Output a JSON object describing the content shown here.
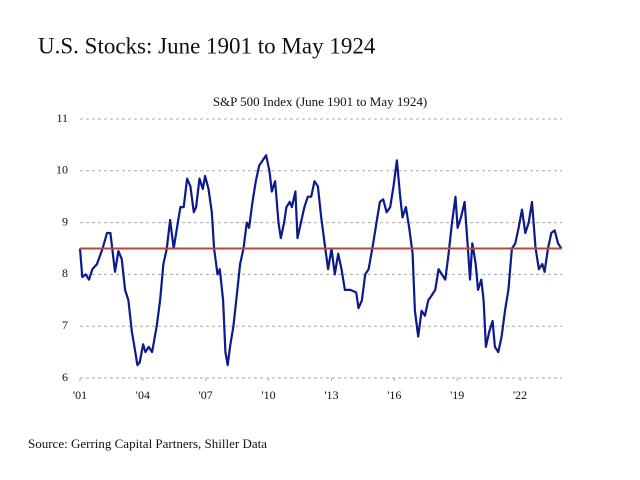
{
  "chart_data": {
    "type": "line",
    "title": "U.S. Stocks:  June 1901 to May 1924",
    "subtitle": "S&P 500 Index (June 1901 to May 1924)",
    "source": "Source: Gerring Capital Partners, Shiller Data",
    "x": [
      1901.0,
      1901.11,
      1901.27,
      1901.43,
      1901.59,
      1901.81,
      1902.08,
      1902.29,
      1902.45,
      1902.67,
      1902.83,
      1902.99,
      1903.15,
      1903.31,
      1903.47,
      1903.64,
      1903.74,
      1903.85,
      1904.01,
      1904.12,
      1904.28,
      1904.44,
      1904.66,
      1904.82,
      1904.98,
      1905.14,
      1905.3,
      1905.47,
      1905.63,
      1905.79,
      1905.95,
      1906.11,
      1906.27,
      1906.43,
      1906.54,
      1906.7,
      1906.86,
      1906.97,
      1907.13,
      1907.29,
      1907.4,
      1907.56,
      1907.67,
      1907.83,
      1907.94,
      1908.05,
      1908.16,
      1908.32,
      1908.48,
      1908.64,
      1908.8,
      1908.96,
      1909.07,
      1909.23,
      1909.39,
      1909.55,
      1909.72,
      1909.88,
      1910.04,
      1910.15,
      1910.31,
      1910.47,
      1910.58,
      1910.74,
      1910.85,
      1911.01,
      1911.11,
      1911.28,
      1911.38,
      1911.54,
      1911.71,
      1911.87,
      1912.03,
      1912.19,
      1912.35,
      1912.51,
      1912.67,
      1912.84,
      1913.0,
      1913.16,
      1913.32,
      1913.48,
      1913.64,
      1913.91,
      1914.18,
      1914.29,
      1914.45,
      1914.61,
      1914.77,
      1914.99,
      1915.15,
      1915.31,
      1915.47,
      1915.63,
      1915.8,
      1915.96,
      1916.12,
      1916.28,
      1916.39,
      1916.55,
      1916.71,
      1916.87,
      1916.98,
      1917.14,
      1917.3,
      1917.46,
      1917.62,
      1917.79,
      1917.95,
      1918.11,
      1918.27,
      1918.43,
      1918.59,
      1918.75,
      1918.92,
      1919.02,
      1919.18,
      1919.35,
      1919.51,
      1919.61,
      1919.72,
      1919.88,
      1919.99,
      1920.15,
      1920.26,
      1920.37,
      1920.53,
      1920.69,
      1920.8,
      1920.96,
      1921.12,
      1921.28,
      1921.44,
      1921.61,
      1921.77,
      1921.93,
      1922.09,
      1922.25,
      1922.41,
      1922.57,
      1922.74,
      1922.9,
      1923.06,
      1923.17,
      1923.33,
      1923.49,
      1923.65,
      1923.81,
      1923.97
    ],
    "series": [
      {
        "color": "#0b1a8c",
        "values": [
          8.5,
          7.95,
          8.0,
          7.9,
          8.1,
          8.2,
          8.5,
          8.8,
          8.8,
          8.05,
          8.45,
          8.3,
          7.7,
          7.5,
          6.9,
          6.5,
          6.25,
          6.3,
          6.65,
          6.5,
          6.6,
          6.5,
          7.0,
          7.5,
          8.2,
          8.5,
          9.05,
          8.5,
          8.9,
          9.3,
          9.3,
          9.85,
          9.7,
          9.2,
          9.3,
          9.85,
          9.65,
          9.9,
          9.65,
          9.2,
          8.5,
          8.0,
          8.1,
          7.5,
          6.5,
          6.25,
          6.6,
          7.0,
          7.6,
          8.2,
          8.5,
          9.0,
          8.9,
          9.4,
          9.8,
          10.1,
          10.2,
          10.3,
          10.0,
          9.6,
          9.8,
          9.0,
          8.7,
          9.0,
          9.3,
          9.4,
          9.3,
          9.6,
          8.7,
          9.0,
          9.3,
          9.5,
          9.5,
          9.8,
          9.7,
          9.1,
          8.6,
          8.1,
          8.5,
          8.0,
          8.4,
          8.1,
          7.7,
          7.7,
          7.65,
          7.35,
          7.5,
          8.0,
          8.1,
          8.6,
          9.0,
          9.4,
          9.45,
          9.2,
          9.3,
          9.7,
          10.2,
          9.5,
          9.1,
          9.3,
          8.9,
          8.4,
          7.3,
          6.8,
          7.3,
          7.2,
          7.5,
          7.6,
          7.7,
          8.1,
          8.0,
          7.9,
          8.4,
          9.0,
          9.5,
          8.9,
          9.1,
          9.4,
          8.5,
          7.9,
          8.6,
          8.2,
          7.7,
          7.9,
          7.5,
          6.6,
          6.9,
          7.1,
          6.6,
          6.5,
          6.8,
          7.3,
          7.7,
          8.5,
          8.6,
          8.9,
          9.25,
          8.8,
          9.0,
          9.4,
          8.5,
          8.1,
          8.2,
          8.05,
          8.5,
          8.8,
          8.85,
          8.6,
          8.5
        ]
      }
    ],
    "hline": 8.5,
    "hline_color": "#b5473b",
    "xlim": [
      1901,
      1924
    ],
    "xticks": [
      {
        "value": 1901,
        "label": "'01"
      },
      {
        "value": 1904,
        "label": "'04"
      },
      {
        "value": 1907,
        "label": "'07"
      },
      {
        "value": 1910,
        "label": "'10"
      },
      {
        "value": 1913,
        "label": "'13"
      },
      {
        "value": 1916,
        "label": "'16"
      },
      {
        "value": 1919,
        "label": "'19"
      },
      {
        "value": 1922,
        "label": "'22"
      }
    ],
    "ylim": [
      6,
      11
    ],
    "yticks": [
      6,
      7,
      8,
      9,
      10,
      11
    ],
    "grid": true
  }
}
